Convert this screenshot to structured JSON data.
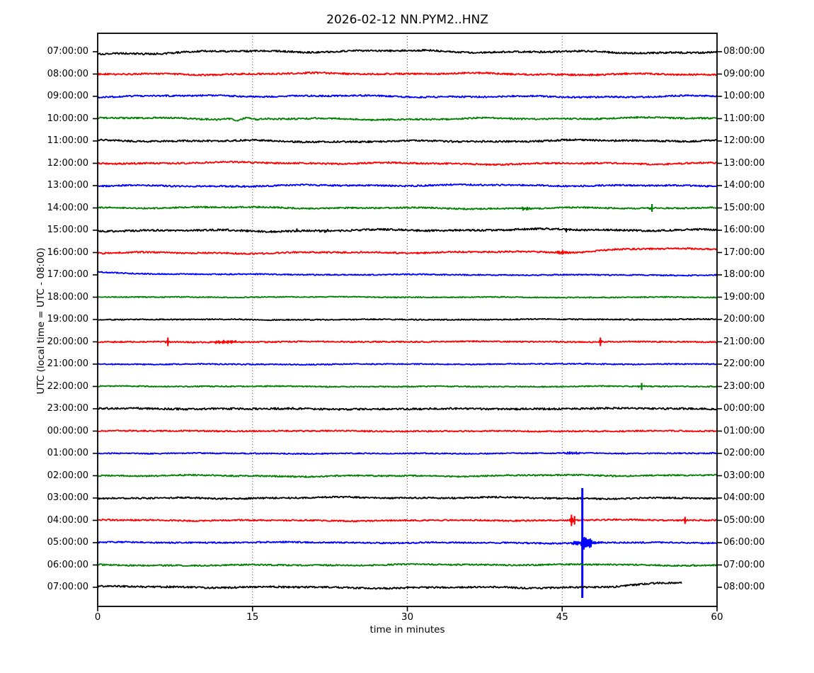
{
  "title": "2026-02-12 NN.PYM2..HNZ",
  "axes": {
    "xlabel": "time in minutes",
    "ylabel": "UTC (local time = UTC - 08:00)",
    "xticks": [
      0,
      15,
      30,
      45,
      60
    ],
    "xlim": [
      0,
      60
    ],
    "grid": "vertical-dotted-at-15-30-45"
  },
  "chart_data": {
    "type": "line",
    "subtype": "seismogram-helicorder-dayplot",
    "station_id": "NN.PYM2..HNZ",
    "date": "2026-02-12",
    "minutes_per_row": 60,
    "color_cycle": [
      "#000000",
      "#ff0000",
      "#0000ff",
      "#008000"
    ],
    "rows": [
      {
        "left_label": "07:00:00",
        "right_label": "08:00:00",
        "color": "#000000",
        "und": 2.0,
        "noise": 1.2,
        "events": [
          {
            "kind": "start-offset",
            "amp": 2.5,
            "tau": 5
          }
        ]
      },
      {
        "left_label": "08:00:00",
        "right_label": "09:00:00",
        "color": "#ff0000",
        "und": 1.5,
        "noise": 1.15,
        "events": []
      },
      {
        "left_label": "09:00:00",
        "right_label": "10:00:00",
        "color": "#0000ff",
        "und": 1.4,
        "noise": 1.1,
        "events": []
      },
      {
        "left_label": "10:00:00",
        "right_label": "11:00:00",
        "color": "#008000",
        "und": 1.5,
        "noise": 1.1,
        "events": [
          {
            "kind": "burst",
            "t": 14,
            "amp": 1.8,
            "w": 1.2,
            "f": 0.5
          }
        ]
      },
      {
        "left_label": "11:00:00",
        "right_label": "12:00:00",
        "color": "#000000",
        "und": 1.5,
        "noise": 1.2,
        "events": []
      },
      {
        "left_label": "12:00:00",
        "right_label": "13:00:00",
        "color": "#ff0000",
        "und": 1.5,
        "noise": 1.15,
        "events": []
      },
      {
        "left_label": "13:00:00",
        "right_label": "14:00:00",
        "color": "#0000ff",
        "und": 1.3,
        "noise": 1.1,
        "events": []
      },
      {
        "left_label": "14:00:00",
        "right_label": "15:00:00",
        "color": "#008000",
        "und": 1.3,
        "noise": 1.0,
        "events": [
          {
            "kind": "burst",
            "t": 41.5,
            "amp": 2,
            "w": 0.4,
            "f": 6
          },
          {
            "kind": "needle",
            "t": 53.7,
            "up": 5.5,
            "down": 5.5
          },
          {
            "kind": "burst",
            "t": 53.7,
            "amp": 1.5,
            "w": 0.25,
            "f": 8
          }
        ]
      },
      {
        "left_label": "15:00:00",
        "right_label": "16:00:00",
        "color": "#000000",
        "und": 1.6,
        "noise": 1.3,
        "events": [
          {
            "kind": "needle",
            "t": 19.3,
            "up": 2.5,
            "down": 2.5
          },
          {
            "kind": "burst",
            "t": 22,
            "amp": 1.2,
            "w": 0.5,
            "f": 6
          },
          {
            "kind": "needle",
            "t": 45.4,
            "up": 3,
            "down": 3
          }
        ]
      },
      {
        "left_label": "16:00:00",
        "right_label": "17:00:00",
        "color": "#ff0000",
        "und": 1.3,
        "noise": 1.1,
        "events": [
          {
            "kind": "burst",
            "t": 45,
            "amp": 2.5,
            "w": 0.5,
            "f": 6
          },
          {
            "kind": "ramp",
            "t": 45,
            "dur": 7,
            "amp": -5
          }
        ]
      },
      {
        "left_label": "17:00:00",
        "right_label": "18:00:00",
        "color": "#0000ff",
        "und": 0.6,
        "noise": 0.8,
        "events": [
          {
            "kind": "start-offset",
            "amp": -4,
            "tau": 7
          }
        ]
      },
      {
        "left_label": "18:00:00",
        "right_label": "19:00:00",
        "color": "#008000",
        "und": 0.5,
        "noise": 0.7,
        "events": []
      },
      {
        "left_label": "19:00:00",
        "right_label": "20:00:00",
        "color": "#000000",
        "und": 0.5,
        "noise": 0.8,
        "events": []
      },
      {
        "left_label": "20:00:00",
        "right_label": "21:00:00",
        "color": "#ff0000",
        "und": 0.6,
        "noise": 0.9,
        "events": [
          {
            "kind": "needle",
            "t": 6.8,
            "up": 6,
            "down": 6
          },
          {
            "kind": "burst",
            "t": 6.8,
            "amp": 2,
            "w": 0.15,
            "f": 10
          },
          {
            "kind": "burst",
            "t": 12.5,
            "amp": 2,
            "w": 0.9,
            "f": 6
          },
          {
            "kind": "needle",
            "t": 48.7,
            "up": 6,
            "down": 6
          },
          {
            "kind": "burst",
            "t": 48.7,
            "amp": 1.8,
            "w": 0.15,
            "f": 10
          }
        ]
      },
      {
        "left_label": "21:00:00",
        "right_label": "22:00:00",
        "color": "#0000ff",
        "und": 0.5,
        "noise": 0.8,
        "events": []
      },
      {
        "left_label": "22:00:00",
        "right_label": "23:00:00",
        "color": "#008000",
        "und": 0.5,
        "noise": 0.8,
        "events": [
          {
            "kind": "needle",
            "t": 52.7,
            "up": 5,
            "down": 5
          },
          {
            "kind": "burst",
            "t": 52.7,
            "amp": 1.5,
            "w": 0.2,
            "f": 8
          }
        ]
      },
      {
        "left_label": "23:00:00",
        "right_label": "00:00:00",
        "color": "#000000",
        "und": 0.7,
        "noise": 1.3,
        "events": []
      },
      {
        "left_label": "00:00:00",
        "right_label": "01:00:00",
        "color": "#ff0000",
        "und": 0.5,
        "noise": 0.95,
        "events": []
      },
      {
        "left_label": "01:00:00",
        "right_label": "02:00:00",
        "color": "#0000ff",
        "und": 0.5,
        "noise": 0.8,
        "events": [
          {
            "kind": "burst",
            "t": 46,
            "amp": 1.5,
            "w": 0.5,
            "f": 5
          }
        ]
      },
      {
        "left_label": "02:00:00",
        "right_label": "03:00:00",
        "color": "#008000",
        "und": 1.2,
        "noise": 1.0,
        "events": []
      },
      {
        "left_label": "03:00:00",
        "right_label": "04:00:00",
        "color": "#000000",
        "und": 1.2,
        "noise": 1.1,
        "events": []
      },
      {
        "left_label": "04:00:00",
        "right_label": "05:00:00",
        "color": "#ff0000",
        "und": 0.8,
        "noise": 1.0,
        "events": [
          {
            "kind": "needle",
            "t": 45.9,
            "up": 8,
            "down": 8
          },
          {
            "kind": "needle",
            "t": 46.2,
            "up": 6,
            "down": 6
          },
          {
            "kind": "burst",
            "t": 46,
            "amp": 3,
            "w": 0.25,
            "f": 8
          },
          {
            "kind": "needle",
            "t": 56.9,
            "up": 5,
            "down": 5
          },
          {
            "kind": "burst",
            "t": 56.9,
            "amp": 1.5,
            "w": 0.15,
            "f": 8
          }
        ]
      },
      {
        "left_label": "05:00:00",
        "right_label": "06:00:00",
        "color": "#0000ff",
        "und": 0.8,
        "noise": 1.0,
        "events": [
          {
            "kind": "needle",
            "t": 46.95,
            "up": 77,
            "down": 78,
            "lw": 3
          },
          {
            "kind": "burst",
            "t": 47,
            "amp": 11,
            "w": 0.45,
            "f": 7
          },
          {
            "kind": "burst",
            "t": 47.7,
            "amp": 3,
            "w": 0.6,
            "f": 6
          }
        ]
      },
      {
        "left_label": "06:00:00",
        "right_label": "07:00:00",
        "color": "#008000",
        "und": 1.0,
        "noise": 1.0,
        "events": []
      },
      {
        "left_label": "07:00:00",
        "right_label": "08:00:00",
        "color": "#000000",
        "und": 1.3,
        "noise": 1.2,
        "end_min": 56.6,
        "events": [
          {
            "kind": "ramp",
            "t": 49,
            "dur": 7.6,
            "amp": -6
          }
        ]
      }
    ]
  }
}
